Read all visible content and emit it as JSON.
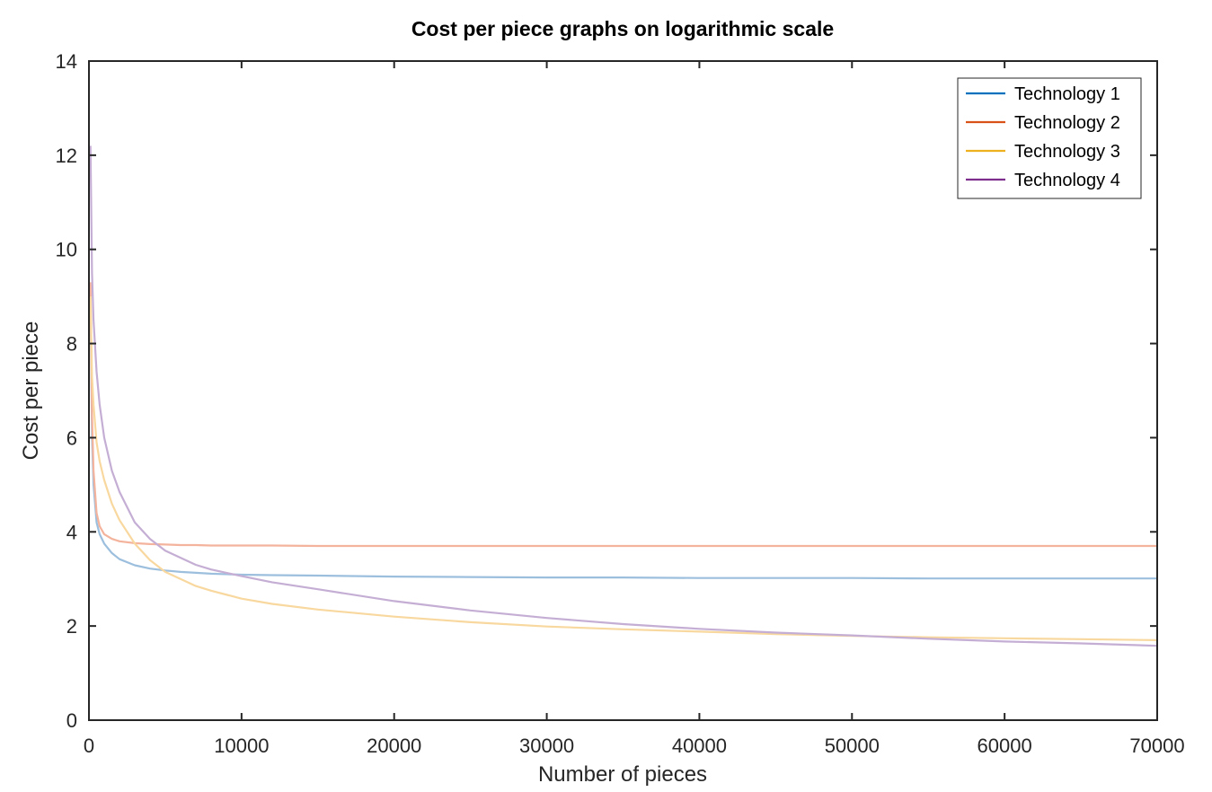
{
  "chart_data": {
    "type": "line",
    "title": "Cost per piece graphs on logarithmic scale",
    "xlabel": "Number of pieces",
    "ylabel": "Cost per piece",
    "xlim": [
      0,
      70000
    ],
    "ylim": [
      0,
      14
    ],
    "xticks": [
      0,
      10000,
      20000,
      30000,
      40000,
      50000,
      60000,
      70000
    ],
    "xtick_labels": [
      "0",
      "10000",
      "20000",
      "30000",
      "40000",
      "50000",
      "60000",
      "70000"
    ],
    "yticks": [
      0,
      2,
      4,
      6,
      8,
      10,
      12,
      14
    ],
    "ytick_labels": [
      "0",
      "2",
      "4",
      "6",
      "8",
      "10",
      "12",
      "14"
    ],
    "grid": false,
    "legend_position": "top-right",
    "x": [
      100,
      200,
      300,
      500,
      700,
      1000,
      1500,
      2000,
      3000,
      4000,
      5000,
      6000,
      7000,
      8000,
      10000,
      12000,
      15000,
      20000,
      25000,
      30000,
      35000,
      40000,
      45000,
      50000,
      55000,
      60000,
      65000,
      70000
    ],
    "series": [
      {
        "name": "Technology 1",
        "legend_color": "#0072BD",
        "line_color": "#9DBFDE",
        "values": [
          9.0,
          6.0,
          5.0,
          4.2,
          3.95,
          3.75,
          3.55,
          3.42,
          3.29,
          3.22,
          3.18,
          3.15,
          3.13,
          3.11,
          3.09,
          3.08,
          3.07,
          3.05,
          3.04,
          3.03,
          3.03,
          3.02,
          3.02,
          3.02,
          3.01,
          3.01,
          3.01,
          3.01
        ]
      },
      {
        "name": "Technology 2",
        "legend_color": "#D95319",
        "line_color": "#F4B39C",
        "values": [
          9.3,
          6.5,
          5.3,
          4.4,
          4.12,
          3.95,
          3.85,
          3.8,
          3.76,
          3.74,
          3.73,
          3.72,
          3.72,
          3.71,
          3.71,
          3.71,
          3.7,
          3.7,
          3.7,
          3.7,
          3.7,
          3.7,
          3.7,
          3.7,
          3.7,
          3.7,
          3.7,
          3.7
        ]
      },
      {
        "name": "Technology 3",
        "legend_color": "#EDB120",
        "line_color": "#F8D89E",
        "values": [
          9.0,
          7.3,
          6.7,
          5.9,
          5.5,
          5.1,
          4.6,
          4.25,
          3.75,
          3.4,
          3.15,
          3.0,
          2.85,
          2.75,
          2.58,
          2.47,
          2.35,
          2.2,
          2.08,
          1.99,
          1.93,
          1.88,
          1.83,
          1.79,
          1.76,
          1.74,
          1.72,
          1.7
        ]
      },
      {
        "name": "Technology 4",
        "legend_color": "#7E2F8E",
        "line_color": "#C5AED4",
        "values": [
          12.2,
          9.5,
          8.5,
          7.4,
          6.7,
          6.0,
          5.3,
          4.85,
          4.2,
          3.85,
          3.6,
          3.45,
          3.3,
          3.2,
          3.06,
          2.93,
          2.78,
          2.53,
          2.33,
          2.17,
          2.04,
          1.94,
          1.86,
          1.8,
          1.73,
          1.67,
          1.63,
          1.58
        ]
      }
    ]
  }
}
